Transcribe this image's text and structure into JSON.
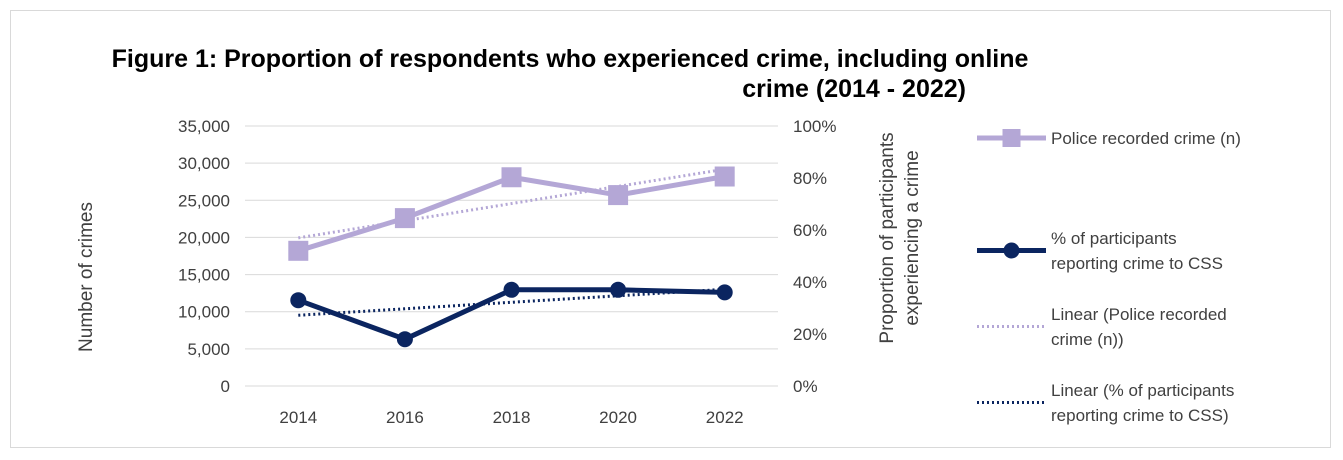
{
  "chart_data": {
    "type": "line",
    "title_line1": "Figure 1: Proportion of respondents who experienced crime, including online",
    "title_line2": "crime (2014 - 2022)",
    "x": [
      "2014",
      "2016",
      "2018",
      "2020",
      "2022"
    ],
    "y_left": {
      "label": "Number of crimes",
      "ylim": [
        0,
        35000
      ],
      "ticks": [
        "0",
        "5,000",
        "10,000",
        "15,000",
        "20,000",
        "25,000",
        "30,000",
        "35,000"
      ]
    },
    "y_right": {
      "label_line1": "Proportion of participants",
      "label_line2": "experiencing a crime",
      "ylim": [
        0,
        1
      ],
      "ticks": [
        "0%",
        "20%",
        "40%",
        "60%",
        "80%",
        "100%"
      ]
    },
    "grid": true,
    "legend_position": "right",
    "series": [
      {
        "name": "Police recorded crime (n)",
        "legend_lines": [
          "Police recorded crime (n)"
        ],
        "axis": "left",
        "values": [
          18200,
          22600,
          28100,
          25700,
          28200
        ],
        "color": "#b4a7d6",
        "marker": "square"
      },
      {
        "name": "% of participants reporting crime to CSS",
        "legend_lines": [
          "% of participants",
          "reporting crime to CSS"
        ],
        "axis": "right",
        "values": [
          0.33,
          0.18,
          0.37,
          0.37,
          0.36
        ],
        "color": "#0b2560",
        "marker": "circle"
      },
      {
        "name": "Linear (Police recorded crime (n))",
        "legend_lines": [
          "Linear (Police recorded",
          "crime (n))"
        ],
        "axis": "left",
        "trend_of": 0,
        "color": "#b4a7d6",
        "dotted": true
      },
      {
        "name": "Linear (% of participants reporting crime to CSS)",
        "legend_lines": [
          "Linear (% of participants",
          "reporting crime to CSS)"
        ],
        "axis": "right",
        "trend_of": 1,
        "color": "#0b2560",
        "dotted": true
      }
    ]
  }
}
